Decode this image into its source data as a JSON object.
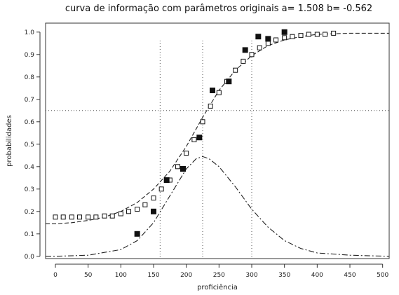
{
  "chart_data": {
    "type": "scatter",
    "title": "curva de informação com parâmetros originais  a= 1.508  b= -0.562",
    "xlabel": "proficiência",
    "ylabel": "probabilidades",
    "xlim": [
      -15,
      510
    ],
    "ylim": [
      -0.01,
      1.04
    ],
    "x_ticks": [
      0,
      50,
      100,
      150,
      200,
      250,
      300,
      350,
      400,
      450,
      500
    ],
    "x_tick_labels": [
      "0",
      "50",
      "100",
      "150",
      "200",
      "250",
      "300",
      "350",
      "400",
      "450",
      "500"
    ],
    "y_ticks": [
      0.0,
      0.1,
      0.2,
      0.3,
      0.4,
      0.5,
      0.6,
      0.7,
      0.8,
      0.9,
      1.0
    ],
    "y_tick_labels": [
      "0.0",
      "0.1",
      "0.2",
      "0.3",
      "0.4",
      "0.5",
      "0.6",
      "0.7",
      "0.8",
      "0.9",
      "1.0"
    ],
    "grid": false,
    "reference_lines": {
      "vertical": [
        160,
        225,
        300
      ],
      "horizontal": [
        0.65
      ]
    },
    "series": [
      {
        "style": "dashed-line",
        "x": [
          -15,
          0,
          25,
          50,
          75,
          100,
          125,
          150,
          175,
          200,
          225,
          250,
          275,
          300,
          325,
          350,
          375,
          400,
          450,
          510
        ],
        "y": [
          0.145,
          0.145,
          0.15,
          0.16,
          0.175,
          0.2,
          0.24,
          0.3,
          0.38,
          0.49,
          0.62,
          0.74,
          0.83,
          0.895,
          0.94,
          0.965,
          0.98,
          0.99,
          0.995,
          0.995
        ]
      },
      {
        "style": "dash-dot-line",
        "x": [
          -15,
          0,
          50,
          100,
          125,
          150,
          175,
          200,
          215,
          225,
          235,
          250,
          275,
          300,
          325,
          350,
          375,
          400,
          450,
          510
        ],
        "y": [
          0.0,
          0.0,
          0.005,
          0.03,
          0.07,
          0.15,
          0.27,
          0.39,
          0.435,
          0.445,
          0.435,
          0.4,
          0.31,
          0.21,
          0.13,
          0.07,
          0.035,
          0.015,
          0.005,
          0.0
        ]
      },
      {
        "style": "open-square",
        "x": [
          0,
          12,
          25,
          37,
          50,
          62,
          75,
          87,
          100,
          112,
          125,
          137,
          150,
          162,
          175,
          187,
          200,
          212,
          225,
          237,
          250,
          262,
          275,
          287,
          300,
          312,
          325,
          337,
          350,
          362,
          375,
          387,
          400,
          412,
          425
        ],
        "y": [
          0.175,
          0.175,
          0.175,
          0.175,
          0.175,
          0.175,
          0.18,
          0.18,
          0.19,
          0.2,
          0.21,
          0.23,
          0.26,
          0.3,
          0.34,
          0.4,
          0.46,
          0.52,
          0.6,
          0.67,
          0.73,
          0.78,
          0.83,
          0.87,
          0.9,
          0.93,
          0.95,
          0.965,
          0.975,
          0.98,
          0.985,
          0.99,
          0.99,
          0.99,
          0.995
        ]
      },
      {
        "style": "filled-square",
        "x": [
          125,
          150,
          170,
          195,
          220,
          240,
          265,
          290,
          310,
          325,
          350
        ],
        "y": [
          0.1,
          0.2,
          0.34,
          0.39,
          0.53,
          0.74,
          0.78,
          0.92,
          0.98,
          0.97,
          1.0
        ]
      }
    ]
  }
}
